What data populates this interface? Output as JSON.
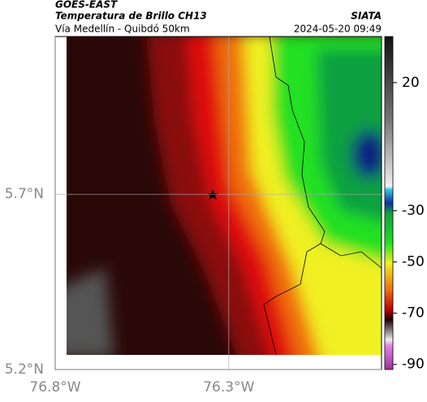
{
  "header": {
    "title": "GOES-EAST",
    "subtitle": "Temperatura de Brillo CH13",
    "route": "Vía Medellín - Quibdó 50km",
    "source": "SIATA",
    "timestamp": "2024-05-20 09:49"
  },
  "map": {
    "xlim": [
      -76.8,
      -75.86
    ],
    "ylim": [
      5.2,
      6.15
    ],
    "xticks": [
      {
        "value": -76.8,
        "label": "76.8°W"
      },
      {
        "value": -76.3,
        "label": "76.3°W"
      }
    ],
    "yticks": [
      {
        "value": 5.2,
        "label": "5.2°N"
      },
      {
        "value": 5.7,
        "label": "5.7°N"
      }
    ]
  },
  "colorbar": {
    "lim": [
      -92,
      38
    ],
    "ticks": [
      20,
      -30,
      -50,
      -70,
      -90
    ]
  }
}
